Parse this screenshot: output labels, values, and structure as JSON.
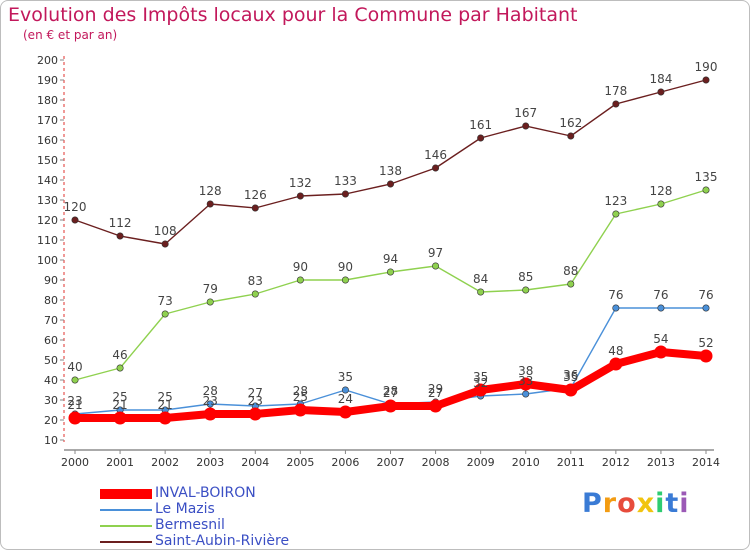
{
  "header": {
    "title": "Evolution des Impôts locaux pour la Commune par Habitant",
    "subtitle": "(en € et par an)"
  },
  "logo": {
    "text": "Proxiti"
  },
  "chart_data": {
    "type": "line",
    "title": "Evolution des Impôts locaux pour la Commune par Habitant",
    "subtitle": "(en € et par an)",
    "xlabel": "",
    "ylabel": "",
    "ylim": [
      10,
      200
    ],
    "ytick_step": 10,
    "grid": false,
    "legend_position": "bottom-left",
    "categories": [
      "2000",
      "2001",
      "2002",
      "2003",
      "2004",
      "2005",
      "2006",
      "2007",
      "2008",
      "2009",
      "2010",
      "2011",
      "2012",
      "2013",
      "2014"
    ],
    "series": [
      {
        "name": "INVAL-BOIRON",
        "color": "#ff0000",
        "values": [
          21,
          21,
          21,
          23,
          23,
          25,
          24,
          27,
          27,
          35,
          38,
          35,
          48,
          54,
          52
        ]
      },
      {
        "name": "Le Mazis",
        "color": "#4a90d9",
        "values": [
          23,
          25,
          25,
          28,
          27,
          28,
          35,
          28,
          29,
          32,
          33,
          36,
          76,
          76,
          76
        ]
      },
      {
        "name": "Bermesnil",
        "color": "#8fd14f",
        "values": [
          40,
          46,
          73,
          79,
          83,
          90,
          90,
          94,
          97,
          84,
          85,
          88,
          123,
          128,
          135
        ]
      },
      {
        "name": "Saint-Aubin-Rivière",
        "color": "#6b1f1f",
        "values": [
          120,
          112,
          108,
          128,
          126,
          132,
          133,
          138,
          146,
          161,
          167,
          162,
          178,
          184,
          190
        ]
      }
    ]
  }
}
